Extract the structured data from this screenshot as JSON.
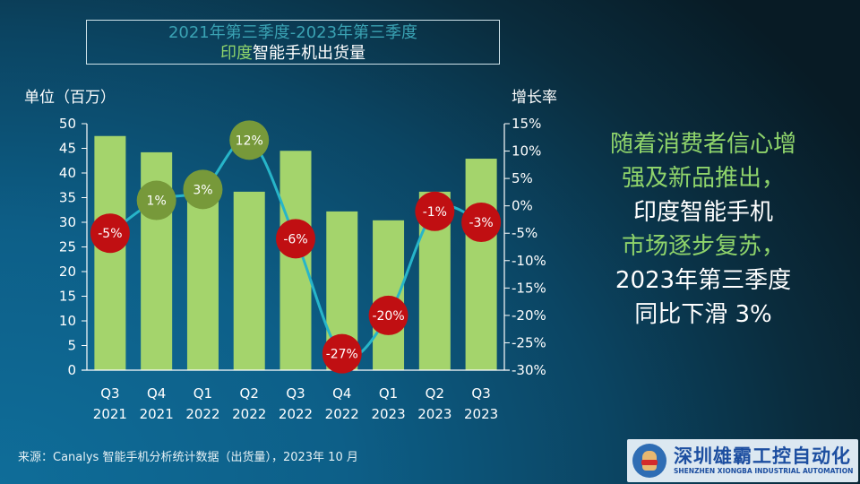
{
  "title": {
    "line1": "2021年第三季度-2023年第三季度",
    "line2_highlight": "印度",
    "line2_rest": "智能手机出货量"
  },
  "axis_labels": {
    "left": "单位（百万）",
    "right": "增长率"
  },
  "summary": {
    "line1": "随着消费者信心增",
    "line2": "强及新品推出，",
    "line3": "印度智能手机",
    "line4": "市场逐步复苏，",
    "line5": "2023年第三季度",
    "line6": "同比下滑 3%"
  },
  "source": "来源：Canalys 智能手机分析统计数据（出货量），2023年 10 月",
  "logo": {
    "cn": "深圳雄霸工控自动化",
    "en": "SHENZHEN XIONGBA INDUSTRIAL AUTOMATION"
  },
  "colors": {
    "bar": "#a4d46c",
    "line": "#27b5c9",
    "positive_bubble": "#77993a",
    "negative_bubble": "#c00f12",
    "highlight_text": "#8fd46b"
  },
  "chart_data": {
    "type": "bar+line",
    "title": "2021年第三季度-2023年第三季度 印度智能手机出货量",
    "categories": [
      "Q3 2021",
      "Q4 2021",
      "Q1 2022",
      "Q2 2022",
      "Q3 2022",
      "Q4 2022",
      "Q1 2023",
      "Q2 2023",
      "Q3 2023"
    ],
    "category_lines": [
      [
        "Q3",
        "2021"
      ],
      [
        "Q4",
        "2021"
      ],
      [
        "Q1",
        "2022"
      ],
      [
        "Q2",
        "2022"
      ],
      [
        "Q3",
        "2022"
      ],
      [
        "Q4",
        "2022"
      ],
      [
        "Q1",
        "2023"
      ],
      [
        "Q2",
        "2023"
      ],
      [
        "Q3",
        "2023"
      ]
    ],
    "series": [
      {
        "name": "出货量（百万）",
        "type": "bar",
        "axis": "left",
        "values": [
          47.5,
          44.2,
          37.8,
          36.2,
          44.5,
          32.2,
          30.4,
          36.2,
          42.9
        ]
      },
      {
        "name": "增长率",
        "type": "line",
        "axis": "right",
        "values": [
          -5,
          1,
          3,
          12,
          -6,
          -27,
          -20,
          -1,
          -3
        ],
        "labels": [
          "-5%",
          "1%",
          "3%",
          "12%",
          "-6%",
          "-27%",
          "-20%",
          "-1%",
          "-3%"
        ]
      }
    ],
    "ylabel": "单位（百万）",
    "ylim": [
      0,
      50
    ],
    "yticks": [
      0,
      5,
      10,
      15,
      20,
      25,
      30,
      35,
      40,
      45,
      50
    ],
    "y2label": "增长率",
    "y2lim": [
      -30,
      15
    ],
    "y2ticks": [
      "15%",
      "10%",
      "5%",
      "0%",
      "-5%",
      "-10%",
      "-15%",
      "-20%",
      "-25%",
      "-30%"
    ],
    "grid": false,
    "legend": "none"
  }
}
